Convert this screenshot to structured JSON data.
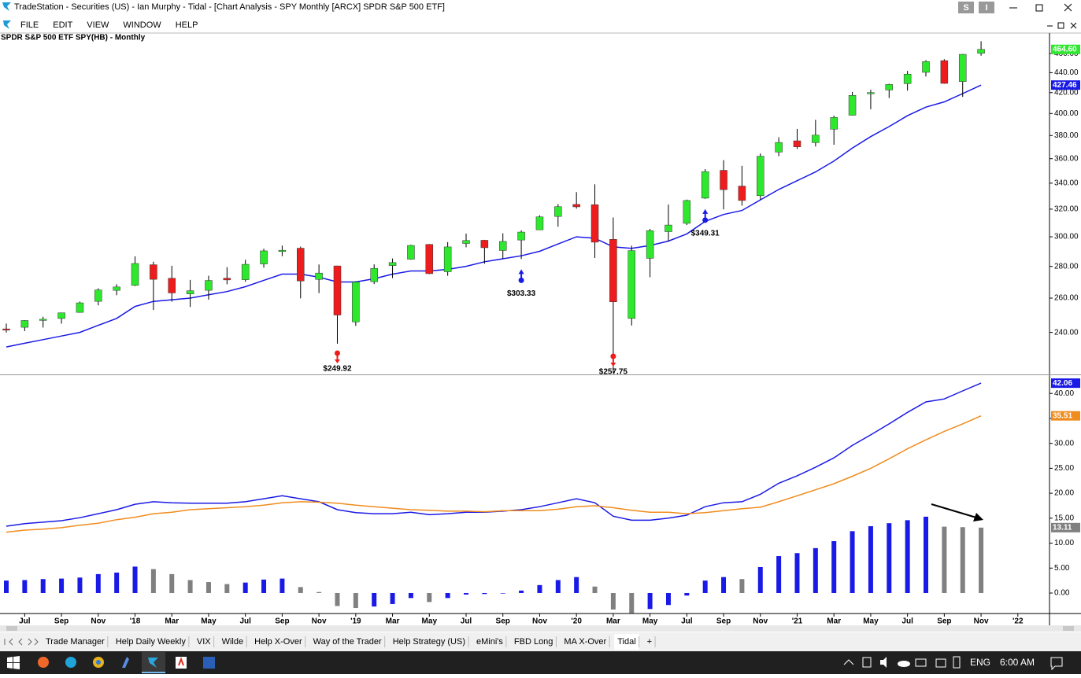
{
  "window": {
    "title": "TradeStation - Securities (US) - Ian Murphy - Tidal - [Chart Analysis - SPY Monthly [ARCX] SPDR S&P 500 ETF]",
    "badges": [
      "S",
      "I"
    ],
    "menu": [
      "FILE",
      "EDIT",
      "VIEW",
      "WINDOW",
      "HELP"
    ]
  },
  "chart_data": {
    "type": "candlestick",
    "title": "SPDR S&P 500 ETF  SPY(HB) - Monthly",
    "log_scale": true,
    "grid": false,
    "up_color": "#2ee82e",
    "down_color": "#ee1c1c",
    "categories": [
      null,
      "Jul",
      null,
      "Sep",
      null,
      "Nov",
      null,
      "'18",
      null,
      "Mar",
      null,
      "May",
      null,
      "Jul",
      null,
      "Sep",
      null,
      "Nov",
      null,
      "'19",
      null,
      "Mar",
      null,
      "May",
      null,
      "Jul",
      null,
      "Sep",
      null,
      "Nov",
      null,
      "'20",
      null,
      "Mar",
      null,
      "May",
      null,
      "Jul",
      null,
      "Sep",
      null,
      "Nov",
      null,
      "'21",
      null,
      "Mar",
      null,
      "May",
      null,
      "Jul",
      null,
      "Sep",
      null,
      "Nov",
      null,
      "'22"
    ],
    "open": [
      241.97,
      242.88,
      247.46,
      247.92,
      251.49,
      258.04,
      264.76,
      267.84,
      281.07,
      272.32,
      262.55,
      264.76,
      272.36,
      271.41,
      281.56,
      289.84,
      292.11,
      271.6,
      280.28,
      245.98,
      270.15,
      280.52,
      284.7,
      294.72,
      276.48,
      295.37,
      297.58,
      290.57,
      297.74,
      304.92,
      314.59,
      323.54,
      323.35,
      298.21,
      247.98,
      285.31,
      303.62,
      309.57,
      328.32,
      350.35,
      337.69,
      330.2,
      365.57,
      375.31,
      373.72,
      385.59,
      398.4,
      419.43,
      422.57,
      428.87,
      440.34,
      452.56,
      430.98,
      460.3,
      null,
      null
    ],
    "high": [
      245.01,
      247.0,
      248.91,
      251.32,
      257.89,
      266.05,
      268.6,
      286.63,
      283.06,
      280.41,
      271.3,
      273.95,
      279.48,
      284.37,
      291.74,
      293.94,
      293.21,
      281.22,
      280.4,
      270.47,
      281.31,
      285.18,
      294.45,
      294.95,
      296.31,
      302.23,
      297.9,
      302.46,
      304.55,
      315.48,
      323.8,
      332.95,
      339.08,
      313.84,
      293.8,
      305.6,
      323.41,
      327.23,
      351.3,
      358.75,
      354.02,
      364.38,
      378.46,
      385.85,
      394.17,
      398.12,
      420.72,
      422.82,
      428.78,
      441.8,
      453.07,
      454.05,
      459.56,
      473.54,
      null,
      null
    ],
    "low": [
      239.96,
      240.75,
      242.75,
      244.95,
      251.29,
      255.63,
      261.79,
      267.4,
      252.92,
      257.83,
      254.67,
      259.05,
      268.49,
      270.11,
      279.16,
      286.71,
      259.85,
      263.07,
      233.76,
      243.67,
      268.68,
      272.42,
      284.4,
      275.0,
      273.91,
      292.76,
      281.72,
      284.82,
      284.82,
      304.74,
      307.13,
      320.36,
      285.54,
      218.26,
      243.9,
      272.99,
      296.74,
      308.36,
      327.73,
      319.8,
      322.6,
      327.24,
      362.03,
      368.27,
      370.38,
      371.88,
      398.18,
      404.0,
      414.7,
      421.97,
      436.1,
      428.78,
      415.86,
      457.77,
      null,
      null
    ],
    "close": [
      241.8,
      246.77,
      247.49,
      251.23,
      257.15,
      265.01,
      266.86,
      281.9,
      271.65,
      263.15,
      264.51,
      270.94,
      271.28,
      281.33,
      290.31,
      290.72,
      270.63,
      275.65,
      249.92,
      269.93,
      278.68,
      282.48,
      294.02,
      275.27,
      293.0,
      297.43,
      292.45,
      296.77,
      303.33,
      314.31,
      321.86,
      321.73,
      296.26,
      257.75,
      290.48,
      304.32,
      308.36,
      326.52,
      349.31,
      334.89,
      326.54,
      362.06,
      373.88,
      370.07,
      380.36,
      396.33,
      417.3,
      420.04,
      428.06,
      438.51,
      451.56,
      429.14,
      459.25,
      464.6,
      null,
      null
    ],
    "close_label": "464.60",
    "ylim": [
      218,
      480
    ],
    "yticks": [
      {
        "value": 240,
        "label": "240.00"
      },
      {
        "value": 260,
        "label": "260.00"
      },
      {
        "value": 280,
        "label": "280.00"
      },
      {
        "value": 300,
        "label": "300.00"
      },
      {
        "value": 320,
        "label": "320.00"
      },
      {
        "value": 340,
        "label": "340.00"
      },
      {
        "value": 360,
        "label": "360.00"
      },
      {
        "value": 380,
        "label": "380.00"
      },
      {
        "value": 400,
        "label": "400.00"
      },
      {
        "value": 420,
        "label": "420.00"
      },
      {
        "value": 440,
        "label": "440.00"
      },
      {
        "value": 460,
        "label": "460.00"
      }
    ],
    "series": [
      {
        "color": "#1a1ae6",
        "last_label": "427.46",
        "values": [
          232,
          234,
          236,
          238,
          240,
          244,
          248,
          255,
          258,
          259,
          260,
          262,
          264,
          267,
          271,
          275,
          275,
          273,
          270,
          270,
          272,
          275,
          277,
          277,
          278,
          280,
          283,
          285,
          287,
          290,
          295,
          300,
          299,
          293,
          292,
          294,
          297,
          302,
          311,
          316,
          319,
          327,
          335,
          342,
          349,
          358,
          369,
          379,
          388,
          398,
          406,
          411,
          419,
          427.46,
          null,
          null
        ]
      }
    ],
    "annotations": [
      {
        "label": "$249.92",
        "value": 249.92,
        "direction": "down",
        "color": "#ee1c1c"
      },
      {
        "label": "$303.33",
        "value": 303.33,
        "direction": "up",
        "color": "#1a1ae6"
      },
      {
        "label": "$257.75",
        "value": 257.75,
        "direction": "down",
        "color": "#ee1c1c"
      },
      {
        "label": "$349.31",
        "value": 349.31,
        "direction": "up",
        "color": "#1a1ae6"
      }
    ],
    "indicator": {
      "type": "macd",
      "ylim": [
        -4.1,
        43.5
      ],
      "yticks": [
        {
          "value": 0,
          "label": "0.00"
        },
        {
          "value": 5,
          "label": "5.00"
        },
        {
          "value": 10,
          "label": "10.00"
        },
        {
          "value": 15,
          "label": "15.00"
        },
        {
          "value": 20,
          "label": "20.00"
        },
        {
          "value": 25,
          "label": "25.00"
        },
        {
          "value": 30,
          "label": "30.00"
        },
        {
          "value": 35,
          "label": "35.00"
        },
        {
          "value": 40,
          "label": "40.00"
        }
      ],
      "series": [
        {
          "color": "#1a1ae6",
          "last_label": "42.06",
          "values": [
            13.4,
            13.9,
            14.2,
            14.5,
            15.1,
            15.9,
            16.7,
            17.8,
            18.3,
            18.1,
            18.0,
            18.0,
            18.0,
            18.3,
            18.9,
            19.5,
            18.9,
            18.3,
            16.7,
            16.1,
            15.9,
            15.9,
            16.2,
            15.7,
            15.9,
            16.2,
            16.2,
            16.4,
            16.7,
            17.3,
            18.1,
            18.9,
            18.1,
            15.4,
            14.6,
            14.6,
            15.0,
            15.6,
            17.3,
            18.1,
            18.3,
            19.8,
            22.0,
            23.5,
            25.2,
            27.1,
            29.6,
            31.7,
            33.9,
            36.2,
            38.3,
            38.9,
            40.5,
            42.06,
            null,
            null
          ]
        },
        {
          "color": "#f08c1e",
          "last_label": "35.51",
          "values": [
            12.2,
            12.6,
            12.8,
            13.1,
            13.6,
            14.0,
            14.7,
            15.2,
            15.9,
            16.2,
            16.7,
            16.9,
            17.1,
            17.3,
            17.6,
            18.1,
            18.3,
            18.2,
            18.0,
            17.6,
            17.3,
            17.0,
            16.7,
            16.6,
            16.4,
            16.4,
            16.3,
            16.5,
            16.5,
            16.5,
            16.8,
            17.3,
            17.5,
            17.1,
            16.6,
            16.2,
            16.2,
            15.9,
            16.1,
            16.5,
            16.9,
            17.2,
            18.3,
            19.5,
            20.7,
            21.9,
            23.4,
            25.0,
            26.9,
            28.9,
            30.7,
            32.4,
            33.9,
            35.51,
            null,
            null
          ]
        }
      ],
      "histogram": {
        "rising_color": "#1a1ae6",
        "falling_color": "#808080",
        "last_label": "13.11",
        "values": [
          2.5,
          2.6,
          2.8,
          2.9,
          3.1,
          3.8,
          4.1,
          5.3,
          4.8,
          3.8,
          2.6,
          2.2,
          1.8,
          2.1,
          2.7,
          2.9,
          1.2,
          0.2,
          -2.6,
          -3.0,
          -2.7,
          -2.2,
          -1.0,
          -1.8,
          -1.0,
          -0.3,
          -0.2,
          -0.1,
          0.5,
          1.6,
          2.6,
          3.2,
          1.3,
          -3.3,
          -4.0,
          -3.2,
          -2.4,
          -0.5,
          2.5,
          3.2,
          2.8,
          5.2,
          7.4,
          8.0,
          9.0,
          10.4,
          12.4,
          13.4,
          14.0,
          14.6,
          15.3,
          13.3,
          13.2,
          13.11,
          null,
          null
        ]
      }
    }
  },
  "tabs": [
    "Trade Manager",
    "Help Daily Weekly",
    "VIX",
    "Wilde",
    "Help X-Over",
    "Way of the Trader",
    "Help Strategy (US)",
    "eMini's",
    "FBD Long",
    "MA X-Over",
    "Tidal",
    "+"
  ],
  "taskbar": {
    "language": "ENG",
    "time": "6:00 AM"
  }
}
